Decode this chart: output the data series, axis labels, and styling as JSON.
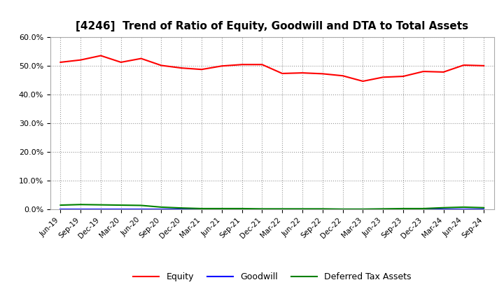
{
  "title": "[4246]  Trend of Ratio of Equity, Goodwill and DTA to Total Assets",
  "x_labels": [
    "Jun-19",
    "Sep-19",
    "Dec-19",
    "Mar-20",
    "Jun-20",
    "Sep-20",
    "Dec-20",
    "Mar-21",
    "Jun-21",
    "Sep-21",
    "Dec-21",
    "Mar-22",
    "Jun-22",
    "Sep-22",
    "Dec-22",
    "Mar-23",
    "Jun-23",
    "Sep-23",
    "Dec-23",
    "Mar-24",
    "Jun-24",
    "Sep-24"
  ],
  "equity": [
    51.2,
    52.0,
    53.5,
    51.2,
    52.5,
    50.1,
    49.2,
    48.7,
    49.9,
    50.4,
    50.4,
    47.3,
    47.5,
    47.2,
    46.5,
    44.6,
    46.0,
    46.3,
    48.0,
    47.8,
    50.2,
    50.0
  ],
  "goodwill": [
    0.0,
    0.0,
    0.0,
    0.0,
    0.0,
    0.0,
    0.0,
    0.0,
    0.0,
    0.0,
    0.0,
    0.0,
    0.0,
    0.0,
    0.0,
    0.0,
    0.0,
    0.0,
    0.0,
    0.0,
    0.0,
    0.0
  ],
  "dta": [
    1.5,
    1.7,
    1.6,
    1.5,
    1.4,
    0.8,
    0.5,
    0.3,
    0.3,
    0.3,
    0.2,
    0.2,
    0.2,
    0.2,
    0.1,
    0.1,
    0.2,
    0.3,
    0.3,
    0.6,
    0.8,
    0.6
  ],
  "equity_color": "#FF0000",
  "goodwill_color": "#0000FF",
  "dta_color": "#008000",
  "ylim": [
    0,
    60
  ],
  "yticks": [
    0,
    10,
    20,
    30,
    40,
    50,
    60
  ],
  "background_color": "#FFFFFF",
  "plot_bg_color": "#FFFFFF",
  "grid_color": "#AAAAAA",
  "title_fontsize": 11,
  "legend_labels": [
    "Equity",
    "Goodwill",
    "Deferred Tax Assets"
  ]
}
